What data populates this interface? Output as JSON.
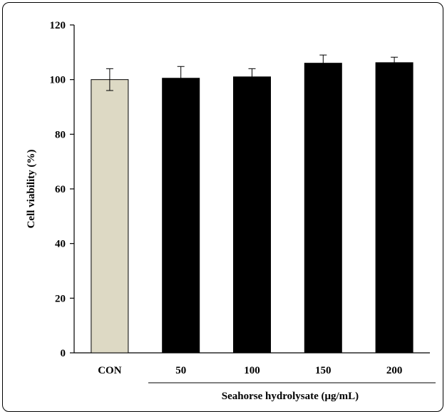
{
  "chart_data": {
    "type": "bar",
    "categories": [
      "CON",
      "50",
      "100",
      "150",
      "200"
    ],
    "values": [
      100,
      100.5,
      101,
      106,
      106.2
    ],
    "errors": [
      4,
      4.3,
      3,
      3,
      2
    ],
    "bar_colors": [
      "#ddd9c4",
      "#000000",
      "#000000",
      "#000000",
      "#000000"
    ],
    "ylabel": "Cell viability (%)",
    "xlabel": "Seahorse hydrolysate (μg/mL)",
    "ylim": [
      0,
      120
    ],
    "yticks": [
      0,
      20,
      40,
      60,
      80,
      100,
      120
    ],
    "grid": false
  }
}
